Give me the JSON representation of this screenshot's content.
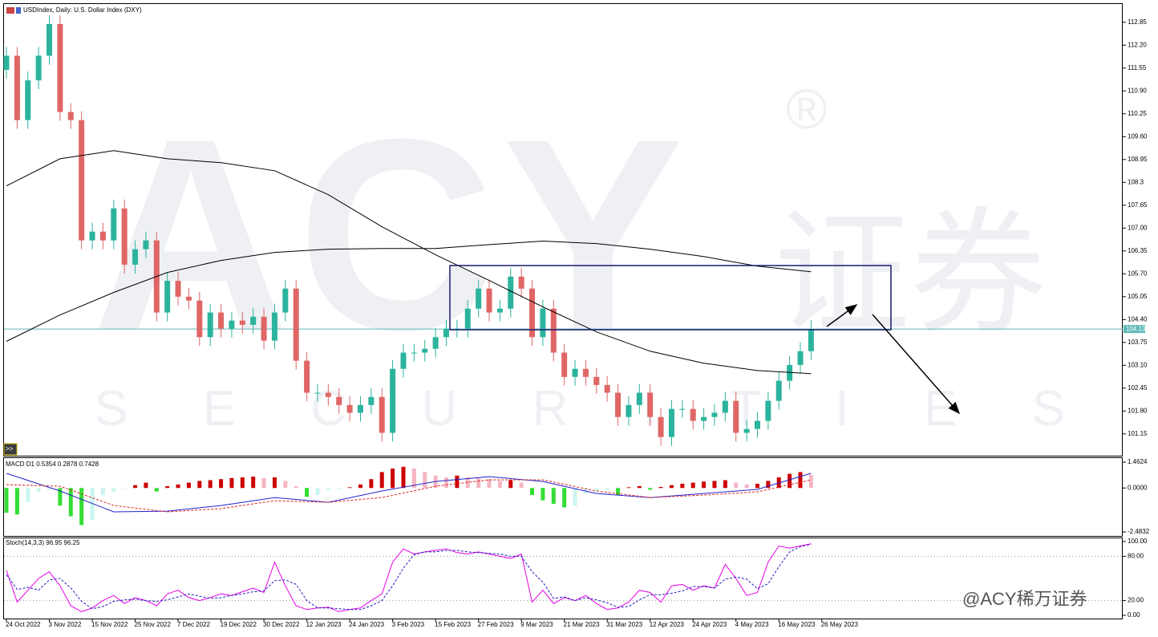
{
  "title": "USDIndex, Daily:  U.S. Dollar Index (DXY)",
  "button": ">>",
  "watermark": {
    "logo": "ACY",
    "tagline": "S E C U R I T I E S",
    "chinese": "证券",
    "registered": "®",
    "credit": "@ACY稀万证券"
  },
  "chart_data": [
    {
      "type": "candlestick",
      "x": [
        0,
        2,
        4,
        6,
        8,
        10,
        12,
        14,
        16,
        18,
        20,
        22,
        24,
        26,
        28,
        30,
        32,
        34,
        36,
        38,
        40,
        42,
        44,
        46,
        48,
        50,
        52,
        54,
        56,
        58,
        60,
        62,
        64,
        66,
        68,
        70,
        72,
        74,
        76,
        78,
        80,
        82,
        84,
        86,
        88,
        90,
        92,
        94,
        96,
        98,
        100,
        102,
        104,
        106,
        108,
        110,
        112,
        114,
        116,
        118,
        120,
        122,
        124,
        126,
        128,
        130,
        132,
        134,
        136,
        138,
        140,
        142,
        144,
        146,
        148,
        150
      ],
      "open": [
        111.5,
        111.9,
        110.07,
        111.2,
        111.9,
        112.8,
        110.3,
        110.07,
        106.65,
        106.9,
        106.65,
        107.56,
        105.96,
        106.4,
        106.65,
        104.6,
        105.5,
        105.05,
        104.94,
        103.9,
        104.6,
        104.14,
        104.37,
        104.25,
        104.48,
        103.8,
        104.6,
        105.28,
        103.23,
        102.32,
        102.32,
        102.2,
        101.97,
        101.75,
        101.97,
        102.2,
        101.18,
        103.0,
        103.46,
        103.46,
        103.57,
        103.9,
        104.14,
        104.14,
        104.71,
        105.28,
        104.6,
        104.71,
        105.62,
        105.28,
        103.9,
        104.71,
        103.46,
        102.77,
        103.0,
        102.77,
        102.54,
        102.32,
        101.63,
        101.97,
        102.32,
        101.63,
        101.06,
        101.86,
        101.86,
        101.52,
        101.63,
        101.75,
        102.09,
        101.18,
        101.29,
        101.52,
        102.09,
        102.66,
        103.11,
        103.5
      ],
      "high": [
        112.15,
        112.15,
        111.45,
        112.15,
        113.05,
        113.05,
        110.55,
        110.32,
        107.15,
        107.15,
        107.81,
        107.81,
        106.65,
        106.9,
        106.9,
        105.75,
        105.75,
        105.3,
        105.19,
        104.85,
        104.85,
        104.62,
        104.62,
        104.73,
        104.73,
        104.85,
        105.53,
        105.53,
        103.48,
        102.57,
        102.57,
        102.45,
        102.22,
        102.22,
        102.45,
        102.45,
        103.25,
        103.71,
        103.71,
        103.82,
        104.15,
        104.39,
        104.39,
        104.96,
        105.53,
        105.53,
        104.96,
        105.87,
        105.87,
        105.53,
        104.96,
        104.96,
        103.71,
        103.25,
        103.25,
        103.02,
        102.79,
        102.57,
        102.22,
        102.57,
        102.57,
        101.88,
        102.11,
        102.11,
        102.11,
        101.88,
        102.0,
        102.34,
        102.34,
        101.54,
        101.77,
        102.34,
        102.91,
        103.36,
        103.75,
        104.38
      ],
      "low": [
        111.25,
        109.82,
        109.82,
        110.95,
        111.65,
        110.05,
        109.82,
        106.4,
        106.4,
        106.4,
        106.4,
        105.71,
        105.71,
        106.15,
        104.35,
        104.35,
        104.8,
        104.69,
        103.65,
        103.65,
        103.89,
        103.89,
        104.0,
        104.0,
        103.55,
        103.55,
        104.35,
        102.98,
        102.07,
        102.07,
        101.95,
        101.72,
        101.5,
        101.5,
        101.72,
        100.93,
        100.93,
        102.75,
        103.21,
        103.21,
        103.32,
        103.65,
        103.89,
        103.89,
        104.46,
        104.35,
        104.35,
        104.46,
        105.03,
        103.65,
        103.65,
        103.21,
        102.52,
        102.52,
        102.52,
        102.29,
        102.07,
        101.38,
        101.38,
        101.72,
        101.38,
        100.81,
        100.81,
        101.61,
        101.27,
        101.27,
        101.38,
        101.5,
        100.93,
        100.93,
        101.04,
        101.27,
        101.84,
        102.41,
        102.86,
        103.25
      ],
      "close": [
        111.9,
        110.07,
        111.2,
        111.9,
        112.8,
        110.3,
        110.07,
        106.65,
        106.9,
        106.65,
        107.56,
        105.96,
        106.4,
        106.65,
        104.6,
        105.5,
        105.05,
        104.94,
        103.9,
        104.6,
        104.14,
        104.37,
        104.25,
        104.48,
        103.8,
        104.6,
        105.28,
        103.23,
        102.32,
        102.32,
        102.2,
        101.97,
        101.75,
        101.97,
        102.2,
        101.18,
        103.0,
        103.46,
        103.46,
        103.57,
        103.9,
        104.14,
        104.14,
        104.71,
        105.28,
        104.6,
        104.71,
        105.62,
        105.28,
        103.9,
        104.71,
        103.46,
        102.77,
        103.0,
        102.77,
        102.54,
        102.32,
        101.63,
        101.97,
        102.32,
        101.63,
        101.06,
        101.86,
        101.86,
        101.52,
        101.63,
        101.75,
        102.09,
        101.18,
        101.29,
        101.52,
        102.09,
        102.66,
        103.11,
        103.5,
        104.13
      ],
      "up_color": "#2bb39d",
      "down_color": "#e06666",
      "xlim": [
        -0.45,
        208.1
      ],
      "xticks": [
        {
          "value": 0,
          "label": "24 Oct 2022"
        },
        {
          "value": 8,
          "label": "3 Nov 2022"
        },
        {
          "value": 16,
          "label": "15 Nov 2022"
        },
        {
          "value": 24,
          "label": "25 Nov 2022"
        },
        {
          "value": 32,
          "label": "7 Dec 2022"
        },
        {
          "value": 40,
          "label": "19 Dec 2022"
        },
        {
          "value": 48,
          "label": "30 Dec 2022"
        },
        {
          "value": 56,
          "label": "12 Jan 2023"
        },
        {
          "value": 64,
          "label": "24 Jan 2023"
        },
        {
          "value": 72,
          "label": "3 Feb 2023"
        },
        {
          "value": 80,
          "label": "15 Feb 2023"
        },
        {
          "value": 88,
          "label": "27 Feb 2023"
        },
        {
          "value": 96,
          "label": "9 Mar 2023"
        },
        {
          "value": 104,
          "label": "21 Mar 2023"
        },
        {
          "value": 112,
          "label": "31 Mar 2023"
        },
        {
          "value": 120,
          "label": "12 Apr 2023"
        },
        {
          "value": 128,
          "label": "24 Apr 2023"
        },
        {
          "value": 136,
          "label": "4 May 2023"
        },
        {
          "value": 144,
          "label": "16 May 2023"
        },
        {
          "value": 152,
          "label": "26 May 2023"
        }
      ],
      "ylim": [
        100.53,
        113.37
      ],
      "yticks": [
        112.85,
        {
          "value": 112.2,
          "label": "112.20"
        },
        111.55,
        {
          "value": 110.9,
          "label": "110.90"
        },
        110.25,
        {
          "value": 109.6,
          "label": "109.60"
        },
        108.95,
        108.3,
        107.65,
        {
          "value": 107,
          "label": "107.00"
        },
        106.35,
        {
          "value": 105.7,
          "label": "105.70"
        },
        105.05,
        {
          "value": 104.4,
          "label": "104.40"
        },
        103.75,
        {
          "value": 103.1,
          "label": "103.10"
        },
        102.45,
        {
          "value": 101.8,
          "label": "101.80"
        },
        101.15
      ],
      "moving_averages": [
        {
          "color": "#000000",
          "x": [
            0,
            10,
            20,
            30,
            40,
            50,
            60,
            70,
            80,
            90,
            100,
            110,
            120,
            130,
            140,
            150
          ],
          "values": [
            108.2,
            108.97,
            109.2,
            108.97,
            108.86,
            108.63,
            107.95,
            107.04,
            106.24,
            105.51,
            104.76,
            104.05,
            103.5,
            103.16,
            102.95,
            102.86
          ]
        },
        {
          "color": "#000000",
          "x": [
            0,
            10,
            20,
            30,
            40,
            50,
            60,
            70,
            80,
            90,
            100,
            110,
            120,
            130,
            140,
            150
          ],
          "values": [
            103.78,
            104.53,
            105.17,
            105.74,
            106.08,
            106.31,
            106.4,
            106.42,
            106.42,
            106.53,
            106.63,
            106.56,
            106.4,
            106.19,
            105.92,
            105.76
          ]
        }
      ],
      "last_price": {
        "value": 104.13,
        "color": "#5fb8b8"
      }
    },
    {
      "type": "bar",
      "label": "MACD D1 0.5354 0.2878 0.7428",
      "values": [
        -1.4,
        -1.5,
        -0.8,
        -0.2,
        -0.1,
        -1.0,
        -1.6,
        -2.1,
        -1.8,
        -0.4,
        -0.2,
        -0.04,
        0.16,
        0.3,
        -0.2,
        0.1,
        0.2,
        0.3,
        0.4,
        0.44,
        0.5,
        0.56,
        0.6,
        0.64,
        0.56,
        0.6,
        0.4,
        0.1,
        -0.5,
        -0.4,
        -0.1,
        -0.06,
        0.04,
        0.2,
        0.5,
        0.9,
        1.1,
        1.2,
        1.1,
        0.9,
        0.7,
        0.6,
        0.7,
        0.6,
        0.56,
        0.5,
        0.4,
        0.44,
        0.3,
        -0.4,
        -0.7,
        -0.9,
        -1.1,
        -1.0,
        -0.3,
        -0.2,
        -0.1,
        -0.4,
        0.04,
        0.1,
        -0.1,
        0.06,
        0.16,
        0.24,
        0.3,
        0.36,
        0.4,
        0.44,
        0.3,
        0.2,
        0.24,
        0.4,
        0.6,
        0.8,
        0.9,
        0.7428
      ],
      "colors": {
        "pos_up": "#cc0000",
        "pos_down": "#f4b6c2",
        "neg_down": "#33dd33",
        "neg_up": "#ccf5f0"
      },
      "lines": [
        {
          "color": "#2222cc",
          "dashed": false,
          "x": [
            0,
            10,
            20,
            30,
            40,
            50,
            60,
            70,
            80,
            90,
            100,
            110,
            120,
            130,
            140,
            150
          ],
          "values": [
            0.83,
            -0.17,
            -1.35,
            -1.31,
            -0.99,
            -0.54,
            -0.81,
            -0.17,
            0.37,
            0.64,
            0.37,
            -0.31,
            -0.54,
            -0.31,
            -0.08,
            0.83
          ]
        },
        {
          "color": "#dd2222",
          "dashed": true,
          "x": [
            0,
            10,
            20,
            30,
            40,
            50,
            60,
            70,
            80,
            90,
            100,
            110,
            120,
            130,
            140,
            150
          ],
          "values": [
            0.19,
            0.1,
            -0.99,
            -1.35,
            -1.17,
            -0.72,
            -0.81,
            -0.54,
            0.1,
            0.46,
            0.46,
            -0.17,
            -0.54,
            -0.4,
            -0.22,
            0.46
          ]
        }
      ],
      "ylim": [
        -2.71,
        1.69
      ],
      "yticks": [
        1.4624,
        {
          "value": 0,
          "label": "0.0000"
        },
        -2.4832
      ]
    },
    {
      "type": "line",
      "label": "Stoch(14,3,3) 96.95 96.25",
      "series": [
        {
          "color": "#e600e6",
          "dashed": false,
          "values": [
            61,
            18,
            34,
            50,
            59,
            40,
            13,
            5,
            10,
            20,
            27,
            16,
            24,
            20,
            13,
            29,
            34,
            24,
            20,
            24,
            29,
            27,
            32,
            37,
            31,
            72,
            40,
            13,
            8,
            10,
            11,
            5,
            8,
            10,
            20,
            29,
            72,
            90,
            83,
            86,
            88,
            90,
            85,
            83,
            86,
            83,
            80,
            77,
            83,
            18,
            34,
            16,
            24,
            20,
            27,
            16,
            8,
            10,
            18,
            34,
            31,
            18,
            40,
            42,
            34,
            40,
            37,
            69,
            50,
            27,
            31,
            72,
            94,
            91,
            94,
            96.95
          ]
        },
        {
          "color": "#2020c0",
          "dashed": true,
          "values": [
            55,
            35,
            38,
            34,
            48,
            50,
            37,
            19,
            9,
            12,
            19,
            21,
            22,
            20,
            19,
            21,
            25,
            29,
            26,
            23,
            24,
            27,
            29,
            32,
            33,
            47,
            48,
            42,
            20,
            10,
            10,
            9,
            8,
            8,
            13,
            20,
            40,
            64,
            82,
            86,
            86,
            88,
            88,
            86,
            85,
            84,
            83,
            80,
            80,
            59,
            45,
            23,
            25,
            20,
            24,
            21,
            17,
            11,
            12,
            21,
            28,
            28,
            30,
            33,
            39,
            39,
            37,
            49,
            52,
            49,
            36,
            43,
            66,
            86,
            93,
            96.25
          ]
        }
      ],
      "levels": [
        80,
        20
      ],
      "ylim": [
        -4.3,
        104.3
      ],
      "yticks": [
        {
          "value": 100,
          "label": "100.00"
        },
        {
          "value": 80,
          "label": "80.00"
        },
        {
          "value": 20,
          "label": "20.00"
        },
        {
          "value": 0,
          "label": "0.00"
        }
      ]
    }
  ]
}
